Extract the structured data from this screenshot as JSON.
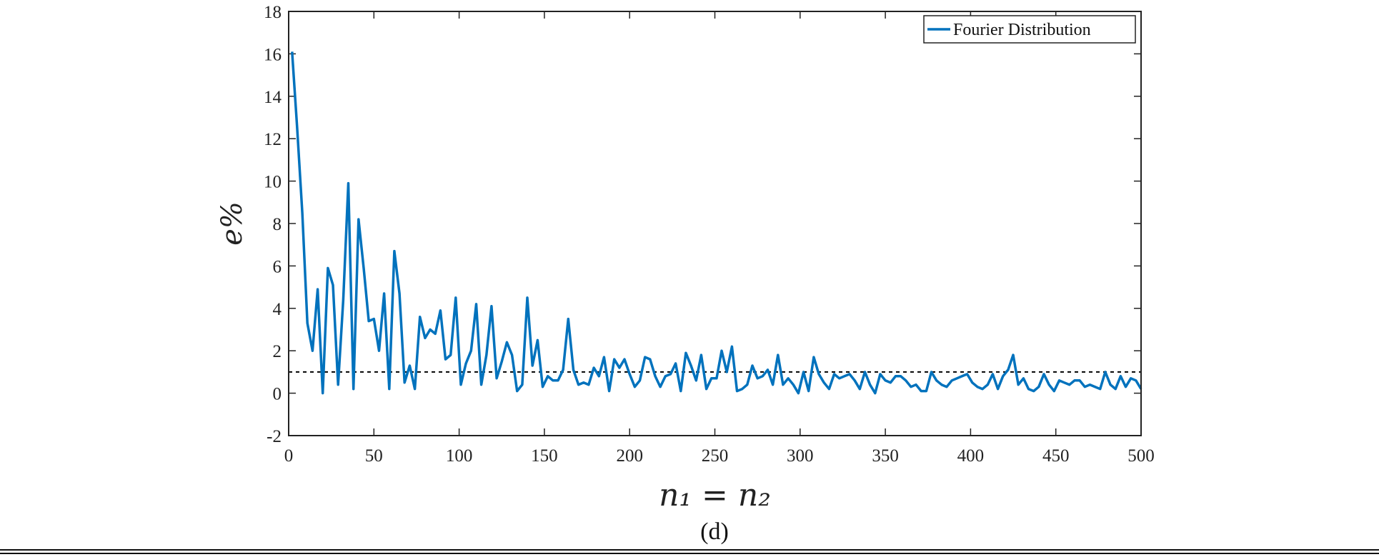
{
  "caption": "(d)",
  "chart_data": {
    "type": "line",
    "title": "",
    "xlabel": "n₁ = n₂",
    "ylabel": "e%",
    "xlim": [
      0,
      500
    ],
    "ylim": [
      -2,
      18
    ],
    "xticks": [
      0,
      50,
      100,
      150,
      200,
      250,
      300,
      350,
      400,
      450,
      500
    ],
    "yticks": [
      -2,
      0,
      2,
      4,
      6,
      8,
      10,
      12,
      14,
      16,
      18
    ],
    "grid": false,
    "legend_position": "top-right",
    "reference_line": {
      "y": 1,
      "style": "dotted",
      "color": "#000000"
    },
    "series": [
      {
        "name": "Fourier Distribution",
        "color": "#0072BD",
        "x": [
          2,
          5,
          8,
          11,
          14,
          17,
          20,
          23,
          26,
          29,
          32,
          35,
          38,
          41,
          44,
          47,
          50,
          53,
          56,
          59,
          62,
          65,
          68,
          71,
          74,
          77,
          80,
          83,
          86,
          89,
          92,
          95,
          98,
          101,
          104,
          107,
          110,
          113,
          116,
          119,
          122,
          125,
          128,
          131,
          134,
          137,
          140,
          143,
          146,
          149,
          152,
          155,
          158,
          161,
          164,
          167,
          170,
          173,
          176,
          179,
          182,
          185,
          188,
          191,
          194,
          197,
          200,
          203,
          206,
          209,
          212,
          215,
          218,
          221,
          224,
          227,
          230,
          233,
          236,
          239,
          242,
          245,
          248,
          251,
          254,
          257,
          260,
          263,
          266,
          269,
          272,
          275,
          278,
          281,
          284,
          287,
          290,
          293,
          296,
          299,
          302,
          305,
          308,
          311,
          314,
          317,
          320,
          323,
          326,
          329,
          332,
          335,
          338,
          341,
          344,
          347,
          350,
          353,
          356,
          359,
          362,
          365,
          368,
          371,
          374,
          377,
          380,
          383,
          386,
          389,
          392,
          395,
          398,
          401,
          404,
          407,
          410,
          413,
          416,
          419,
          422,
          425,
          428,
          431,
          434,
          437,
          440,
          443,
          446,
          449,
          452,
          455,
          458,
          461,
          464,
          467,
          470,
          473,
          476,
          479,
          482,
          485,
          488,
          491,
          494,
          497,
          500
        ],
        "y": [
          16.1,
          12.5,
          8.5,
          3.3,
          2.0,
          4.9,
          0.0,
          5.9,
          5.1,
          0.4,
          4.4,
          9.9,
          0.2,
          8.2,
          5.9,
          3.4,
          3.5,
          2.0,
          4.7,
          0.2,
          6.7,
          4.7,
          0.5,
          1.3,
          0.2,
          3.6,
          2.6,
          3.0,
          2.8,
          3.9,
          1.6,
          1.8,
          4.5,
          0.4,
          1.4,
          2.0,
          4.2,
          0.4,
          1.8,
          4.1,
          0.7,
          1.5,
          2.4,
          1.8,
          0.1,
          0.4,
          4.5,
          1.3,
          2.5,
          0.3,
          0.8,
          0.6,
          0.6,
          1.1,
          3.5,
          1.1,
          0.4,
          0.5,
          0.4,
          1.2,
          0.8,
          1.7,
          0.1,
          1.6,
          1.2,
          1.6,
          0.9,
          0.3,
          0.6,
          1.7,
          1.6,
          0.8,
          0.3,
          0.8,
          0.9,
          1.4,
          0.1,
          1.9,
          1.3,
          0.6,
          1.8,
          0.2,
          0.7,
          0.7,
          2.0,
          1.0,
          2.2,
          0.1,
          0.2,
          0.4,
          1.3,
          0.7,
          0.8,
          1.1,
          0.4,
          1.8,
          0.4,
          0.7,
          0.4,
          0.0,
          1.0,
          0.1,
          1.7,
          0.9,
          0.5,
          0.2,
          0.9,
          0.7,
          0.8,
          0.9,
          0.6,
          0.2,
          1.0,
          0.4,
          0.0,
          0.9,
          0.6,
          0.5,
          0.8,
          0.8,
          0.6,
          0.3,
          0.4,
          0.1,
          0.1,
          1.0,
          0.6,
          0.4,
          0.3,
          0.6,
          0.7,
          0.8,
          0.9,
          0.5,
          0.3,
          0.2,
          0.4,
          0.9,
          0.2,
          0.8,
          1.1,
          1.8,
          0.4,
          0.7,
          0.2,
          0.1,
          0.3,
          0.9,
          0.4,
          0.1,
          0.6,
          0.5,
          0.4,
          0.6,
          0.6,
          0.3,
          0.4,
          0.3,
          0.2,
          1.0,
          0.4,
          0.2,
          0.8,
          0.3,
          0.7,
          0.6,
          0.2
        ]
      }
    ]
  }
}
